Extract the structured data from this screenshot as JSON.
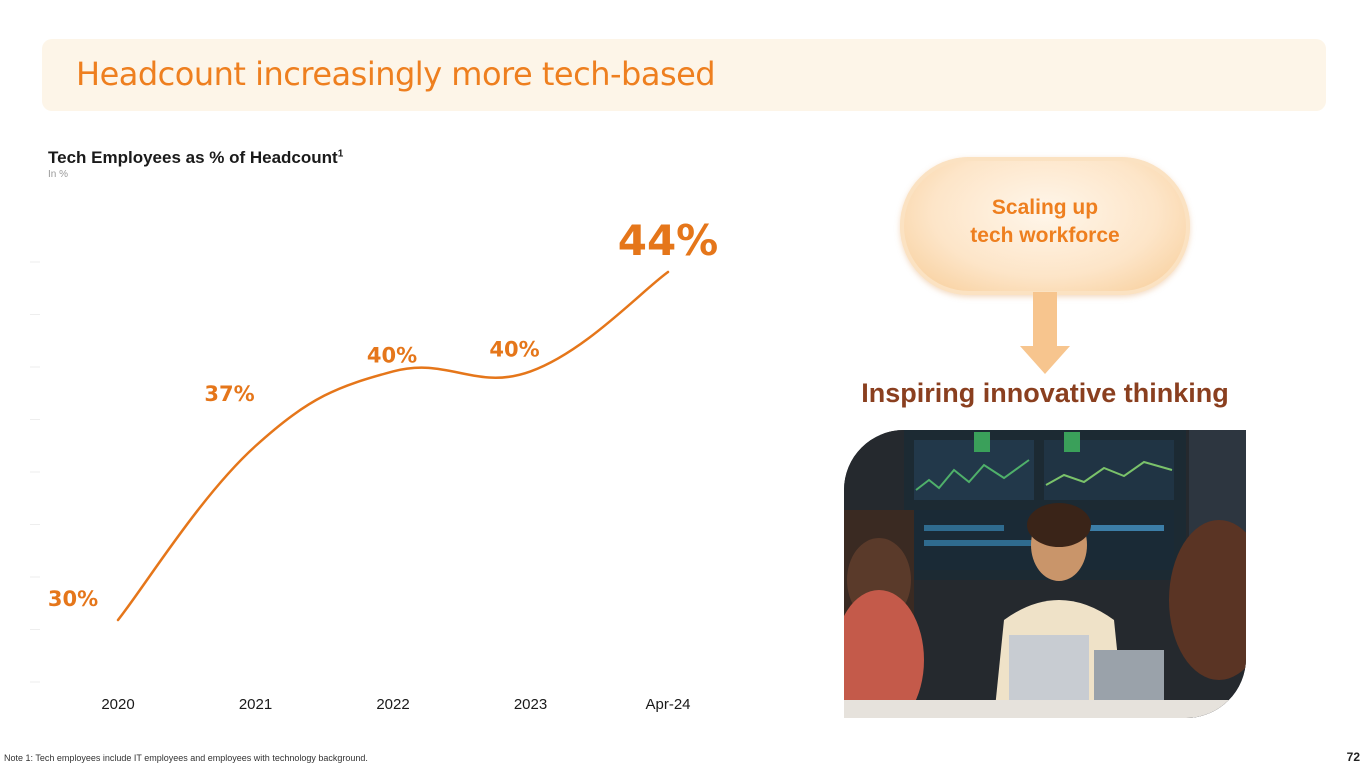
{
  "header": {
    "title": "Headcount increasingly more tech-based"
  },
  "chart_data": {
    "type": "line",
    "title": "Tech Employees as % of Headcount",
    "title_superscript": "1",
    "subtitle": "In %",
    "categories": [
      "2020",
      "2021",
      "2022",
      "2023",
      "Apr-24"
    ],
    "values": [
      30,
      37,
      40,
      40,
      44
    ],
    "data_labels": [
      "30%",
      "37%",
      "40%",
      "40%",
      "44%"
    ],
    "ylim": [
      28,
      46
    ],
    "grid": false,
    "legend": "none",
    "line_color": "#e5761a",
    "label_color": "#e5761a"
  },
  "callout": {
    "line1": "Scaling up",
    "line2": "tech workforce",
    "tagline": "Inspiring innovative thinking"
  },
  "photo": {
    "description_icon": "team-meeting-photo"
  },
  "footer": {
    "note": "Note 1: Tech employees include IT employees and employees with technology background.",
    "page_number": "72"
  },
  "colors": {
    "accent": "#ee7f1f",
    "title_bg": "#fdf5e8",
    "tagline": "#8a3f1f",
    "arrow": "#f7c58e"
  }
}
